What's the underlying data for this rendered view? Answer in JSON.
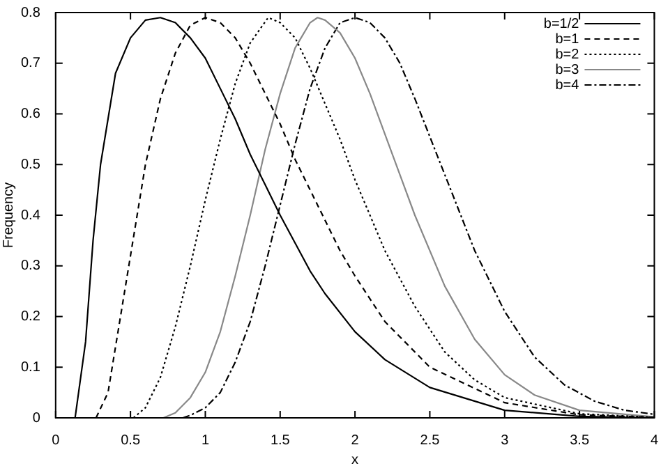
{
  "chart_data": {
    "type": "line",
    "xlabel": "x",
    "ylabel": "Frequency",
    "xlim": [
      0,
      4
    ],
    "ylim": [
      0,
      0.8
    ],
    "xticks": [
      0,
      0.5,
      1,
      1.5,
      2,
      2.5,
      3,
      3.5,
      4
    ],
    "yticks": [
      0,
      0.1,
      0.2,
      0.3,
      0.4,
      0.5,
      0.6,
      0.7,
      0.8
    ],
    "grid": false,
    "legend": "top right",
    "marker": "none",
    "series": [
      {
        "name": "b=1/2",
        "color": "#000000",
        "line_style": "solid",
        "x": [
          0.13,
          0.2,
          0.25,
          0.3,
          0.4,
          0.5,
          0.6,
          0.7,
          0.8,
          0.9,
          1.0,
          1.1,
          1.2,
          1.3,
          1.4,
          1.5,
          1.6,
          1.7,
          1.8,
          2.0,
          2.2,
          2.5,
          3.0,
          3.5,
          4.0
        ],
        "values": [
          0,
          0.15,
          0.35,
          0.5,
          0.68,
          0.75,
          0.785,
          0.79,
          0.78,
          0.75,
          0.71,
          0.65,
          0.59,
          0.52,
          0.46,
          0.4,
          0.345,
          0.29,
          0.245,
          0.17,
          0.115,
          0.06,
          0.015,
          0.003,
          0
        ]
      },
      {
        "name": "b=1",
        "color": "#000000",
        "line_style": "dashed",
        "x": [
          0.27,
          0.35,
          0.4,
          0.5,
          0.6,
          0.7,
          0.8,
          0.9,
          1.0,
          1.1,
          1.2,
          1.3,
          1.4,
          1.5,
          1.6,
          1.7,
          1.8,
          1.9,
          2.0,
          2.2,
          2.5,
          3.0,
          3.5,
          4.0
        ],
        "values": [
          0,
          0.05,
          0.14,
          0.32,
          0.5,
          0.63,
          0.72,
          0.775,
          0.79,
          0.78,
          0.75,
          0.7,
          0.64,
          0.58,
          0.51,
          0.45,
          0.39,
          0.33,
          0.28,
          0.19,
          0.1,
          0.03,
          0.006,
          0.001
        ]
      },
      {
        "name": "b=2",
        "color": "#000000",
        "line_style": "dotted",
        "x": [
          0.52,
          0.6,
          0.7,
          0.8,
          0.9,
          1.0,
          1.1,
          1.2,
          1.3,
          1.42,
          1.5,
          1.6,
          1.7,
          1.8,
          1.9,
          2.0,
          2.2,
          2.4,
          2.6,
          2.8,
          3.0,
          3.5,
          4.0
        ],
        "values": [
          0,
          0.02,
          0.08,
          0.18,
          0.3,
          0.43,
          0.55,
          0.66,
          0.74,
          0.79,
          0.78,
          0.75,
          0.69,
          0.62,
          0.55,
          0.47,
          0.33,
          0.22,
          0.13,
          0.075,
          0.04,
          0.008,
          0.001
        ]
      },
      {
        "name": "b=3",
        "color": "#888888",
        "line_style": "solid",
        "x": [
          0.72,
          0.8,
          0.9,
          1.0,
          1.1,
          1.2,
          1.3,
          1.4,
          1.5,
          1.6,
          1.7,
          1.75,
          1.8,
          1.9,
          2.0,
          2.1,
          2.2,
          2.4,
          2.6,
          2.8,
          3.0,
          3.2,
          3.5,
          4.0
        ],
        "values": [
          0,
          0.01,
          0.04,
          0.09,
          0.17,
          0.28,
          0.4,
          0.53,
          0.64,
          0.73,
          0.78,
          0.79,
          0.785,
          0.76,
          0.71,
          0.64,
          0.56,
          0.4,
          0.26,
          0.155,
          0.085,
          0.045,
          0.015,
          0.002
        ]
      },
      {
        "name": "b=4",
        "color": "#000000",
        "line_style": "dashdot",
        "x": [
          0.85,
          0.9,
          1.0,
          1.1,
          1.2,
          1.3,
          1.4,
          1.5,
          1.6,
          1.7,
          1.8,
          1.9,
          2.0,
          2.1,
          2.2,
          2.3,
          2.4,
          2.6,
          2.8,
          3.0,
          3.2,
          3.4,
          3.6,
          3.8,
          4.0
        ],
        "values": [
          0,
          0.005,
          0.02,
          0.05,
          0.11,
          0.19,
          0.3,
          0.42,
          0.54,
          0.65,
          0.73,
          0.78,
          0.79,
          0.78,
          0.75,
          0.7,
          0.63,
          0.48,
          0.33,
          0.21,
          0.12,
          0.065,
          0.033,
          0.015,
          0.007
        ]
      }
    ]
  }
}
